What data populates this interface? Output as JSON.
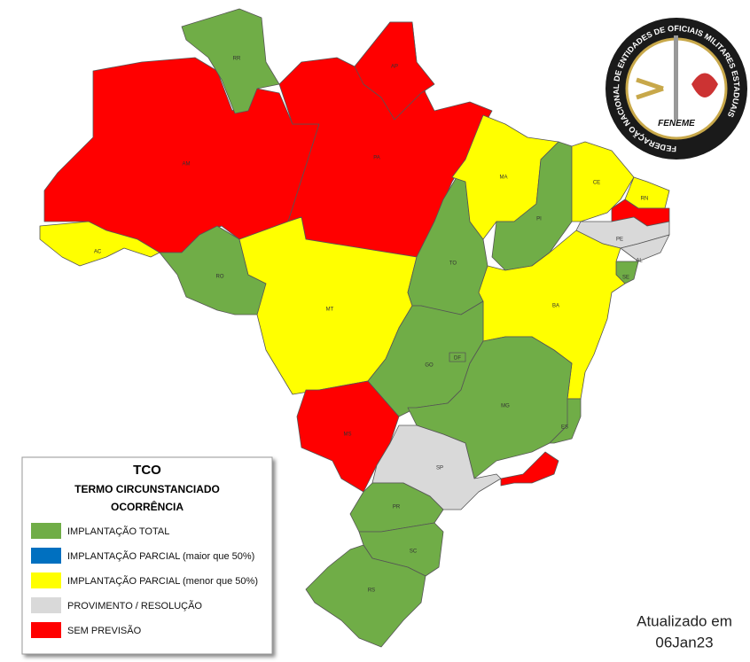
{
  "map": {
    "states": [
      {
        "label": "AM",
        "color": "#ff0000"
      },
      {
        "label": "PA",
        "color": "#ff0000"
      },
      {
        "label": "RR",
        "color": "#70ad47"
      },
      {
        "label": "AP",
        "color": "#ff0000"
      },
      {
        "label": "AC",
        "color": "#ffff00"
      },
      {
        "label": "RO",
        "color": "#70ad47"
      },
      {
        "label": "MT",
        "color": "#ffff00"
      },
      {
        "label": "MS",
        "color": "#ff0000"
      },
      {
        "label": "TO",
        "color": "#70ad47"
      },
      {
        "label": "MA",
        "color": "#ffff00"
      },
      {
        "label": "PI",
        "color": "#70ad47"
      },
      {
        "label": "CE",
        "color": "#ffff00"
      },
      {
        "label": "RN",
        "color": "#ffff00"
      },
      {
        "label": null,
        "color": "#ff0000"
      },
      {
        "label": "PE",
        "color": "#d9d9d9"
      },
      {
        "label": "AL",
        "color": "#d9d9d9"
      },
      {
        "label": "SE",
        "color": "#70ad47"
      },
      {
        "label": "BA",
        "color": "#ffff00"
      },
      {
        "label": "GO",
        "color": "#70ad47"
      },
      {
        "label": "MG",
        "color": "#70ad47"
      },
      {
        "label": "ES",
        "color": "#70ad47"
      },
      {
        "label": "SP",
        "color": "#d9d9d9"
      },
      {
        "label": null,
        "color": "#ff0000"
      },
      {
        "label": "PR",
        "color": "#70ad47"
      },
      {
        "label": "SC",
        "color": "#70ad47"
      },
      {
        "label": "RS",
        "color": "#70ad47"
      },
      {
        "label": "DF",
        "color": "#70ad47"
      }
    ]
  },
  "legend": {
    "title": "TCO",
    "subtitle_lines": [
      "TERMO CIRCUNSTANCIADO",
      "OCORRÊNCIA"
    ],
    "items": [
      {
        "label": "IMPLANTAÇÃO TOTAL",
        "color": "#70ad47"
      },
      {
        "label": "IMPLANTAÇÃO PARCIAL (maior que 50%)",
        "color": "#0070c0"
      },
      {
        "label": "IMPLANTAÇÃO PARCIAL (menor que 50%)",
        "color": "#ffff00"
      },
      {
        "label": "PROVIMENTO / RESOLUÇÃO",
        "color": "#d9d9d9"
      },
      {
        "label": "SEM PREVISÃO",
        "color": "#ff0000"
      }
    ]
  },
  "logo": {
    "ring_text": "FEDERAÇÃO NACIONAL DE ENTIDADES DE OFICIAIS MILITARES ESTADUAIS",
    "name": "FENEME"
  },
  "update": {
    "line1": "Atualizado em",
    "line2": "06Jan23"
  }
}
